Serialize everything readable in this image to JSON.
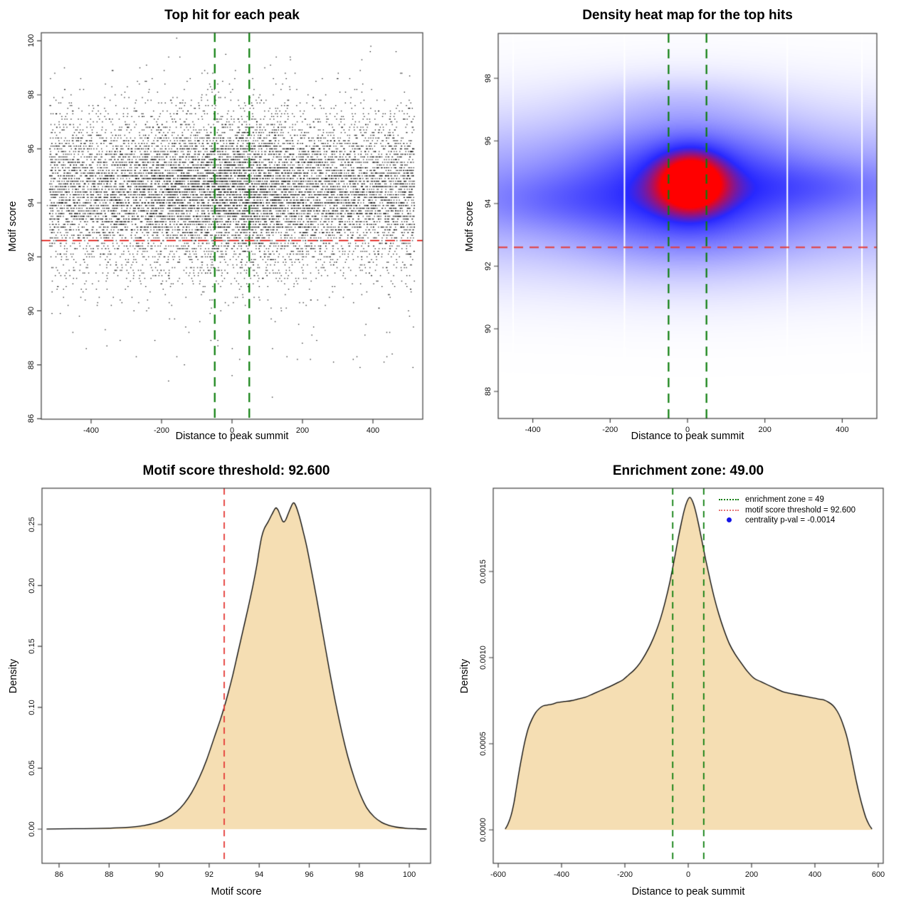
{
  "page": {
    "background": "#ffffff",
    "accent_green": "#0b7d0b",
    "accent_red": "#e53935",
    "fill_wheat": "#f5deb3",
    "point_black": "#000000",
    "heat_blue": "#2828ff",
    "heat_red": "#ff0000"
  },
  "chart_data": [
    {
      "id": "top-hit-scatter",
      "type": "scatter",
      "title": "Top hit for each peak",
      "xlabel": "Distance to peak summit",
      "ylabel": "Motif score",
      "xlim": [
        -541,
        541
      ],
      "ylim": [
        85.7,
        100.3
      ],
      "x_ticks": [
        {
          "v": -400,
          "label": "-400"
        },
        {
          "v": -200,
          "label": "-200"
        },
        {
          "v": 0,
          "label": "0"
        },
        {
          "v": 200,
          "label": "200"
        },
        {
          "v": 400,
          "label": "400"
        }
      ],
      "y_ticks": [
        {
          "v": 86,
          "label": "86"
        },
        {
          "v": 88,
          "label": "88"
        },
        {
          "v": 90,
          "label": "90"
        },
        {
          "v": 92,
          "label": "92"
        },
        {
          "v": 94,
          "label": "94"
        },
        {
          "v": 96,
          "label": "96"
        },
        {
          "v": 98,
          "label": "98"
        },
        {
          "v": 100,
          "label": "100"
        }
      ],
      "enrichment_zone": [
        -49,
        49
      ],
      "zone_color": "#0b7d0b",
      "score_threshold": 92.6,
      "threshold_color": "#e53935",
      "point_color": "#000000",
      "points_model": {
        "n": 12000,
        "seed": 7,
        "y_mean": 94.45,
        "y_sd": 1.4,
        "y_tail_mean": 93.5,
        "y_tail_sd": 2.6,
        "y_tail_frac": 0.05,
        "y_step": 0.1,
        "y_min": 86.1,
        "y_max": 100.15,
        "x_uniform": [
          -518,
          518
        ],
        "x_center_frac": 0.18,
        "x_center_sd": 150
      }
    },
    {
      "id": "top-hits-density-heatmap",
      "type": "heatmap",
      "title": "Density heat map for the top hits",
      "xlabel": "Distance to peak summit",
      "ylabel": "Motif score",
      "xlim": [
        -489,
        489
      ],
      "ylim": [
        87.1,
        99.4
      ],
      "x_ticks": [
        {
          "v": -400,
          "label": "-400"
        },
        {
          "v": -200,
          "label": "-200"
        },
        {
          "v": 0,
          "label": "0"
        },
        {
          "v": 200,
          "label": "200"
        },
        {
          "v": 400,
          "label": "400"
        }
      ],
      "y_ticks": [
        {
          "v": 88,
          "label": "88"
        },
        {
          "v": 90,
          "label": "90"
        },
        {
          "v": 92,
          "label": "92"
        },
        {
          "v": 94,
          "label": "94"
        },
        {
          "v": 96,
          "label": "96"
        },
        {
          "v": 98,
          "label": "98"
        }
      ],
      "enrichment_zone": [
        -49,
        49
      ],
      "zone_color": "#0b7d0b",
      "score_threshold": 92.6,
      "threshold_color": "#e53935",
      "colors": {
        "low": "#ffffff",
        "mid": "#2828ff",
        "high": "#ff0000",
        "mid_point": 0.7
      },
      "band": {
        "a_base": 0.3,
        "a_center": 0.12,
        "mod_sx": 300,
        "my": 94.35,
        "sy": 1.75
      },
      "kernels": [
        {
          "a": 0.34,
          "mx": 0,
          "sx": 185,
          "my": 94.6,
          "sy": 1.5
        },
        {
          "a": 0.55,
          "mx": 8,
          "sx": 62,
          "my": 94.7,
          "sy": 0.7
        },
        {
          "a": 0.13,
          "mx": 340,
          "sx": 150,
          "my": 94.55,
          "sy": 0.55
        },
        {
          "a": 0.11,
          "mx": -345,
          "sx": 150,
          "my": 94.1,
          "sy": 0.6
        },
        {
          "a": 0.06,
          "mx": -30,
          "sx": 170,
          "my": 97.35,
          "sy": 0.55
        }
      ],
      "white_gaps_x": [
        -451,
        -163,
        258,
        451
      ]
    },
    {
      "id": "motif-score-density",
      "type": "area",
      "title": "Motif score threshold: 92.600",
      "xlabel": "Motif score",
      "ylabel": "Density",
      "xlim": [
        85.3,
        100.85
      ],
      "ylim": [
        -0.027,
        0.281
      ],
      "x_ticks": [
        {
          "v": 86,
          "label": "86"
        },
        {
          "v": 88,
          "label": "88"
        },
        {
          "v": 90,
          "label": "90"
        },
        {
          "v": 92,
          "label": "92"
        },
        {
          "v": 94,
          "label": "94"
        },
        {
          "v": 96,
          "label": "96"
        },
        {
          "v": 98,
          "label": "98"
        },
        {
          "v": 100,
          "label": "100"
        }
      ],
      "y_ticks": [
        {
          "v": 0,
          "label": "0.00"
        },
        {
          "v": 0.05,
          "label": "0.05"
        },
        {
          "v": 0.1,
          "label": "0.10"
        },
        {
          "v": 0.15,
          "label": "0.15"
        },
        {
          "v": 0.2,
          "label": "0.20"
        },
        {
          "v": 0.25,
          "label": "0.25"
        }
      ],
      "fill": "#f5deb3",
      "stroke": "#000000",
      "threshold": 92.6,
      "threshold_color": "#e53935",
      "points": [
        [
          85.5,
          0.0001
        ],
        [
          86,
          0.0002
        ],
        [
          87,
          0.0004
        ],
        [
          88,
          0.0008
        ],
        [
          88.8,
          0.0015
        ],
        [
          89.4,
          0.003
        ],
        [
          89.9,
          0.0055
        ],
        [
          90.3,
          0.009
        ],
        [
          90.7,
          0.0145
        ],
        [
          91.0,
          0.021
        ],
        [
          91.3,
          0.03
        ],
        [
          91.6,
          0.042
        ],
        [
          91.9,
          0.057
        ],
        [
          92.2,
          0.075
        ],
        [
          92.45,
          0.09
        ],
        [
          92.6,
          0.1
        ],
        [
          92.75,
          0.111
        ],
        [
          92.95,
          0.127
        ],
        [
          93.15,
          0.145
        ],
        [
          93.35,
          0.163
        ],
        [
          93.55,
          0.181
        ],
        [
          93.75,
          0.2
        ],
        [
          93.9,
          0.216
        ],
        [
          94.0,
          0.229
        ],
        [
          94.1,
          0.24
        ],
        [
          94.2,
          0.2465
        ],
        [
          94.35,
          0.252
        ],
        [
          94.5,
          0.258
        ],
        [
          94.65,
          0.2635
        ],
        [
          94.75,
          0.262
        ],
        [
          94.85,
          0.257
        ],
        [
          94.95,
          0.2525
        ],
        [
          95.05,
          0.2535
        ],
        [
          95.2,
          0.261
        ],
        [
          95.35,
          0.2675
        ],
        [
          95.45,
          0.266
        ],
        [
          95.6,
          0.257
        ],
        [
          95.75,
          0.245
        ],
        [
          95.9,
          0.232
        ],
        [
          96.1,
          0.211
        ],
        [
          96.3,
          0.189
        ],
        [
          96.55,
          0.16
        ],
        [
          96.8,
          0.131
        ],
        [
          97.05,
          0.104
        ],
        [
          97.3,
          0.08
        ],
        [
          97.55,
          0.059
        ],
        [
          97.8,
          0.042
        ],
        [
          98.05,
          0.028
        ],
        [
          98.3,
          0.0175
        ],
        [
          98.6,
          0.01
        ],
        [
          98.9,
          0.0055
        ],
        [
          99.2,
          0.003
        ],
        [
          99.5,
          0.0016
        ],
        [
          99.9,
          0.0007
        ],
        [
          100.3,
          0.0003
        ],
        [
          100.7,
          0.0001
        ]
      ]
    },
    {
      "id": "distance-density",
      "type": "area",
      "title": "Enrichment zone: 49.00",
      "xlabel": "Distance to peak summit",
      "ylabel": "Density",
      "xlim": [
        -615,
        615
      ],
      "ylim": [
        -0.000195,
        0.00218
      ],
      "x_ticks": [
        {
          "v": -600,
          "label": "-600"
        },
        {
          "v": -400,
          "label": "-400"
        },
        {
          "v": -200,
          "label": "-200"
        },
        {
          "v": 0,
          "label": "0"
        },
        {
          "v": 200,
          "label": "200"
        },
        {
          "v": 400,
          "label": "400"
        },
        {
          "v": 600,
          "label": "600"
        }
      ],
      "y_ticks": [
        {
          "v": 0,
          "label": "0.0000"
        },
        {
          "v": 0.0005,
          "label": "0.0005"
        },
        {
          "v": 0.001,
          "label": "0.0010"
        },
        {
          "v": 0.0015,
          "label": "0.0015"
        }
      ],
      "fill": "#f5deb3",
      "stroke": "#000000",
      "zone": [
        -49,
        49
      ],
      "zone_color": "#0b7d0b",
      "legend": {
        "items": [
          {
            "label": "enrichment zone = 49",
            "marker": "dotted-line",
            "color": "#0b7d0b"
          },
          {
            "label": "motif score threshold = 92.600",
            "marker": "dotted-line",
            "color": "#e57373"
          },
          {
            "label": "centrality p-val = -0.0014",
            "marker": "dot",
            "color": "#1414e6"
          }
        ]
      },
      "points": [
        [
          -578,
          5e-06
        ],
        [
          -570,
          3e-05
        ],
        [
          -560,
          8e-05
        ],
        [
          -550,
          0.00016
        ],
        [
          -542,
          0.00025
        ],
        [
          -533,
          0.00035
        ],
        [
          -524,
          0.00044
        ],
        [
          -515,
          0.00052
        ],
        [
          -505,
          0.00059
        ],
        [
          -494,
          0.00064
        ],
        [
          -482,
          0.00068
        ],
        [
          -470,
          0.000705
        ],
        [
          -458,
          0.00072
        ],
        [
          -445,
          0.000725
        ],
        [
          -430,
          0.00073
        ],
        [
          -412,
          0.00074
        ],
        [
          -392,
          0.000745
        ],
        [
          -370,
          0.00075
        ],
        [
          -348,
          0.00076
        ],
        [
          -325,
          0.00077
        ],
        [
          -300,
          0.00079
        ],
        [
          -275,
          0.00081
        ],
        [
          -250,
          0.00083
        ],
        [
          -228,
          0.00085
        ],
        [
          -207,
          0.00087
        ],
        [
          -188,
          0.0009
        ],
        [
          -170,
          0.00093
        ],
        [
          -152,
          0.00097
        ],
        [
          -135,
          0.00102
        ],
        [
          -118,
          0.00108
        ],
        [
          -102,
          0.00115
        ],
        [
          -87,
          0.00123
        ],
        [
          -72,
          0.00133
        ],
        [
          -58,
          0.00144
        ],
        [
          -45,
          0.00156
        ],
        [
          -33,
          0.00168
        ],
        [
          -22,
          0.00178
        ],
        [
          -12,
          0.00186
        ],
        [
          -3,
          0.00191
        ],
        [
          5,
          0.00193
        ],
        [
          13,
          0.00191
        ],
        [
          22,
          0.00186
        ],
        [
          32,
          0.00178
        ],
        [
          43,
          0.00168
        ],
        [
          55,
          0.00157
        ],
        [
          68,
          0.00146
        ],
        [
          82,
          0.00135
        ],
        [
          97,
          0.00125
        ],
        [
          113,
          0.00116
        ],
        [
          130,
          0.00108
        ],
        [
          148,
          0.00102
        ],
        [
          167,
          0.00097
        ],
        [
          187,
          0.00092
        ],
        [
          208,
          0.00088
        ],
        [
          230,
          0.00086
        ],
        [
          253,
          0.00084
        ],
        [
          277,
          0.00082
        ],
        [
          302,
          0.0008
        ],
        [
          328,
          0.00079
        ],
        [
          355,
          0.00078
        ],
        [
          383,
          0.00077
        ],
        [
          410,
          0.00076
        ],
        [
          428,
          0.000755
        ],
        [
          444,
          0.00074
        ],
        [
          458,
          0.00072
        ],
        [
          470,
          0.00069
        ],
        [
          481,
          0.00065
        ],
        [
          491,
          0.0006
        ],
        [
          501,
          0.00054
        ],
        [
          511,
          0.00046
        ],
        [
          521,
          0.00037
        ],
        [
          531,
          0.00028
        ],
        [
          541,
          0.0002
        ],
        [
          551,
          0.00013
        ],
        [
          561,
          7e-05
        ],
        [
          571,
          3e-05
        ],
        [
          580,
          5e-06
        ]
      ]
    }
  ]
}
